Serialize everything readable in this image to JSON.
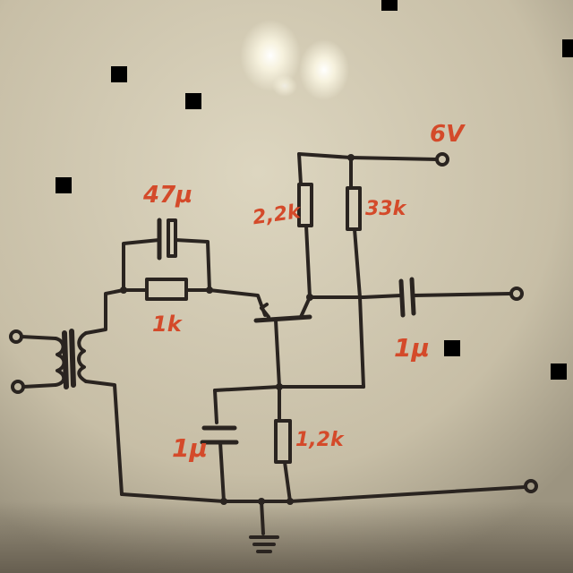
{
  "colors": {
    "board": "#cfc7b0",
    "ink": "#2a2420",
    "label": "#d44a2a"
  },
  "labels": {
    "supply": "6V",
    "cap_feedback": "47µ",
    "res_feedback": "1k",
    "res_collector": "2,2k",
    "res_bias": "33k",
    "cap_output": "1µ",
    "cap_emitter": "1µ",
    "res_emitter": "1,2k"
  }
}
